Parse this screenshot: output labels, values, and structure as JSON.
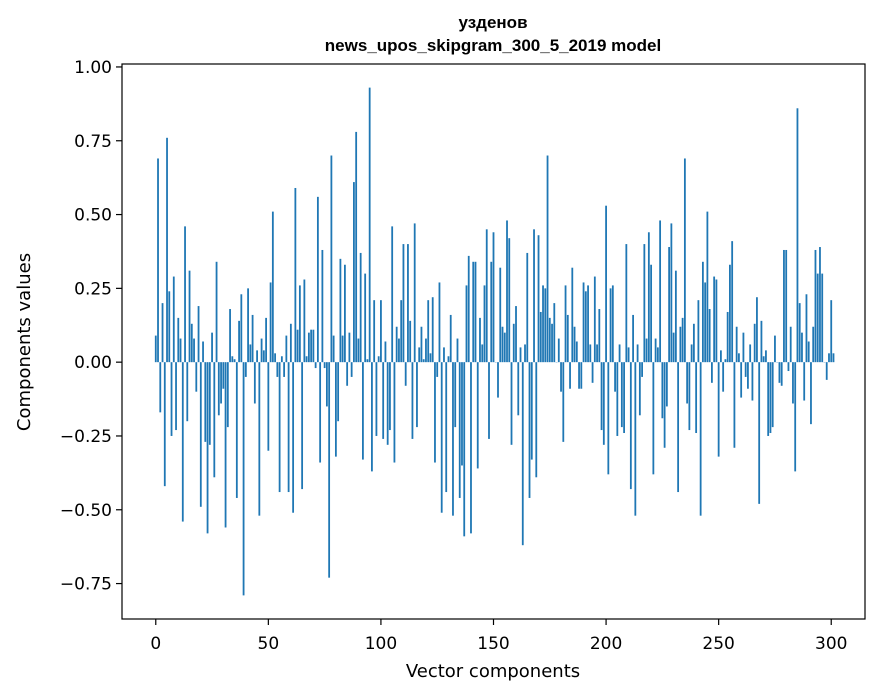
{
  "chart_data": {
    "type": "bar",
    "title": "узденов",
    "subtitle": "news_upos_skipgram_300_5_2019 model",
    "xlabel": "Vector components",
    "ylabel": "Components values",
    "xlim": [
      -15,
      315
    ],
    "ylim": [
      -0.87,
      1.01
    ],
    "xticks": [
      0,
      50,
      100,
      150,
      200,
      250,
      300
    ],
    "yticks": [
      -0.75,
      -0.5,
      -0.25,
      0.0,
      0.25,
      0.5,
      0.75,
      1.0
    ],
    "ytick_labels": [
      "−0.75",
      "−0.50",
      "−0.25",
      "0.00",
      "0.25",
      "0.50",
      "0.75",
      "1.00"
    ],
    "bar_color": "#1f77b4",
    "values": [
      0.09,
      0.69,
      -0.17,
      0.2,
      -0.42,
      0.76,
      0.24,
      -0.25,
      0.29,
      -0.23,
      0.15,
      0.08,
      -0.54,
      0.46,
      -0.2,
      0.31,
      0.13,
      0.08,
      -0.1,
      0.19,
      -0.49,
      0.07,
      -0.27,
      -0.58,
      -0.28,
      0.1,
      -0.39,
      0.34,
      -0.18,
      -0.14,
      -0.09,
      -0.56,
      -0.22,
      0.18,
      0.02,
      0.01,
      -0.46,
      0.14,
      0.23,
      -0.79,
      -0.05,
      0.25,
      0.06,
      0.16,
      -0.14,
      0.04,
      -0.52,
      0.08,
      0.04,
      0.15,
      -0.3,
      0.27,
      0.51,
      0.03,
      -0.05,
      -0.44,
      0.02,
      -0.05,
      0.09,
      -0.44,
      0.13,
      -0.51,
      0.59,
      0.11,
      0.26,
      -0.43,
      0.28,
      0.02,
      0.1,
      0.11,
      0.11,
      -0.02,
      0.56,
      -0.34,
      0.38,
      -0.02,
      -0.15,
      -0.73,
      0.7,
      0.09,
      -0.32,
      -0.2,
      0.35,
      0.09,
      0.33,
      -0.08,
      0.1,
      -0.05,
      0.61,
      0.78,
      0.08,
      0.37,
      -0.33,
      0.3,
      0.01,
      0.93,
      -0.37,
      0.21,
      -0.25,
      0.02,
      0.21,
      -0.26,
      0.07,
      -0.28,
      -0.23,
      0.46,
      -0.34,
      0.12,
      0.08,
      0.21,
      0.4,
      -0.08,
      0.4,
      0.14,
      -0.26,
      0.47,
      -0.22,
      0.05,
      0.12,
      0.01,
      0.08,
      0.21,
      0.03,
      0.22,
      -0.34,
      -0.05,
      0.27,
      -0.51,
      0.05,
      -0.44,
      0.02,
      0.16,
      -0.52,
      -0.22,
      0.08,
      -0.46,
      -0.35,
      -0.59,
      0.26,
      0.36,
      -0.58,
      0.34,
      0.34,
      -0.36,
      0.15,
      0.06,
      0.26,
      0.45,
      -0.26,
      0.34,
      0.44,
      0.0,
      -0.12,
      0.32,
      0.12,
      0.1,
      0.48,
      0.42,
      -0.28,
      0.13,
      0.19,
      -0.18,
      0.05,
      -0.62,
      0.06,
      0.37,
      -0.46,
      -0.33,
      0.45,
      -0.39,
      0.43,
      0.17,
      0.26,
      0.25,
      0.7,
      0.15,
      0.13,
      0.2,
      0.0,
      0.08,
      -0.1,
      -0.27,
      0.26,
      0.16,
      -0.09,
      0.32,
      0.12,
      0.07,
      -0.09,
      -0.09,
      0.27,
      0.24,
      0.26,
      0.06,
      -0.07,
      0.29,
      0.06,
      0.18,
      -0.23,
      -0.28,
      0.53,
      -0.38,
      0.25,
      0.26,
      -0.1,
      -0.25,
      0.06,
      -0.22,
      -0.24,
      0.4,
      0.05,
      -0.43,
      0.16,
      -0.52,
      0.06,
      -0.18,
      -0.05,
      0.4,
      0.08,
      0.44,
      0.33,
      -0.38,
      0.08,
      0.05,
      0.48,
      -0.19,
      -0.29,
      -0.15,
      0.39,
      0.47,
      0.1,
      0.31,
      -0.44,
      0.12,
      0.15,
      0.69,
      -0.14,
      -0.23,
      0.06,
      0.13,
      -0.24,
      0.21,
      -0.52,
      0.34,
      0.27,
      0.51,
      0.18,
      -0.07,
      0.29,
      0.28,
      -0.32,
      0.04,
      -0.1,
      0.01,
      0.17,
      0.33,
      0.41,
      -0.29,
      0.12,
      0.03,
      -0.12,
      0.1,
      -0.05,
      -0.09,
      0.06,
      -0.13,
      0.13,
      0.22,
      -0.48,
      0.14,
      0.02,
      0.04,
      -0.25,
      -0.24,
      -0.22,
      0.09,
      0.0,
      -0.07,
      -0.08,
      0.38,
      0.38,
      -0.03,
      0.12,
      -0.14,
      -0.37,
      0.86,
      0.2,
      0.1,
      -0.13,
      0.23,
      0.07,
      -0.21,
      0.12,
      0.38,
      0.3,
      0.39,
      0.3,
      0.0,
      -0.06,
      0.03,
      0.21,
      0.03
    ]
  }
}
